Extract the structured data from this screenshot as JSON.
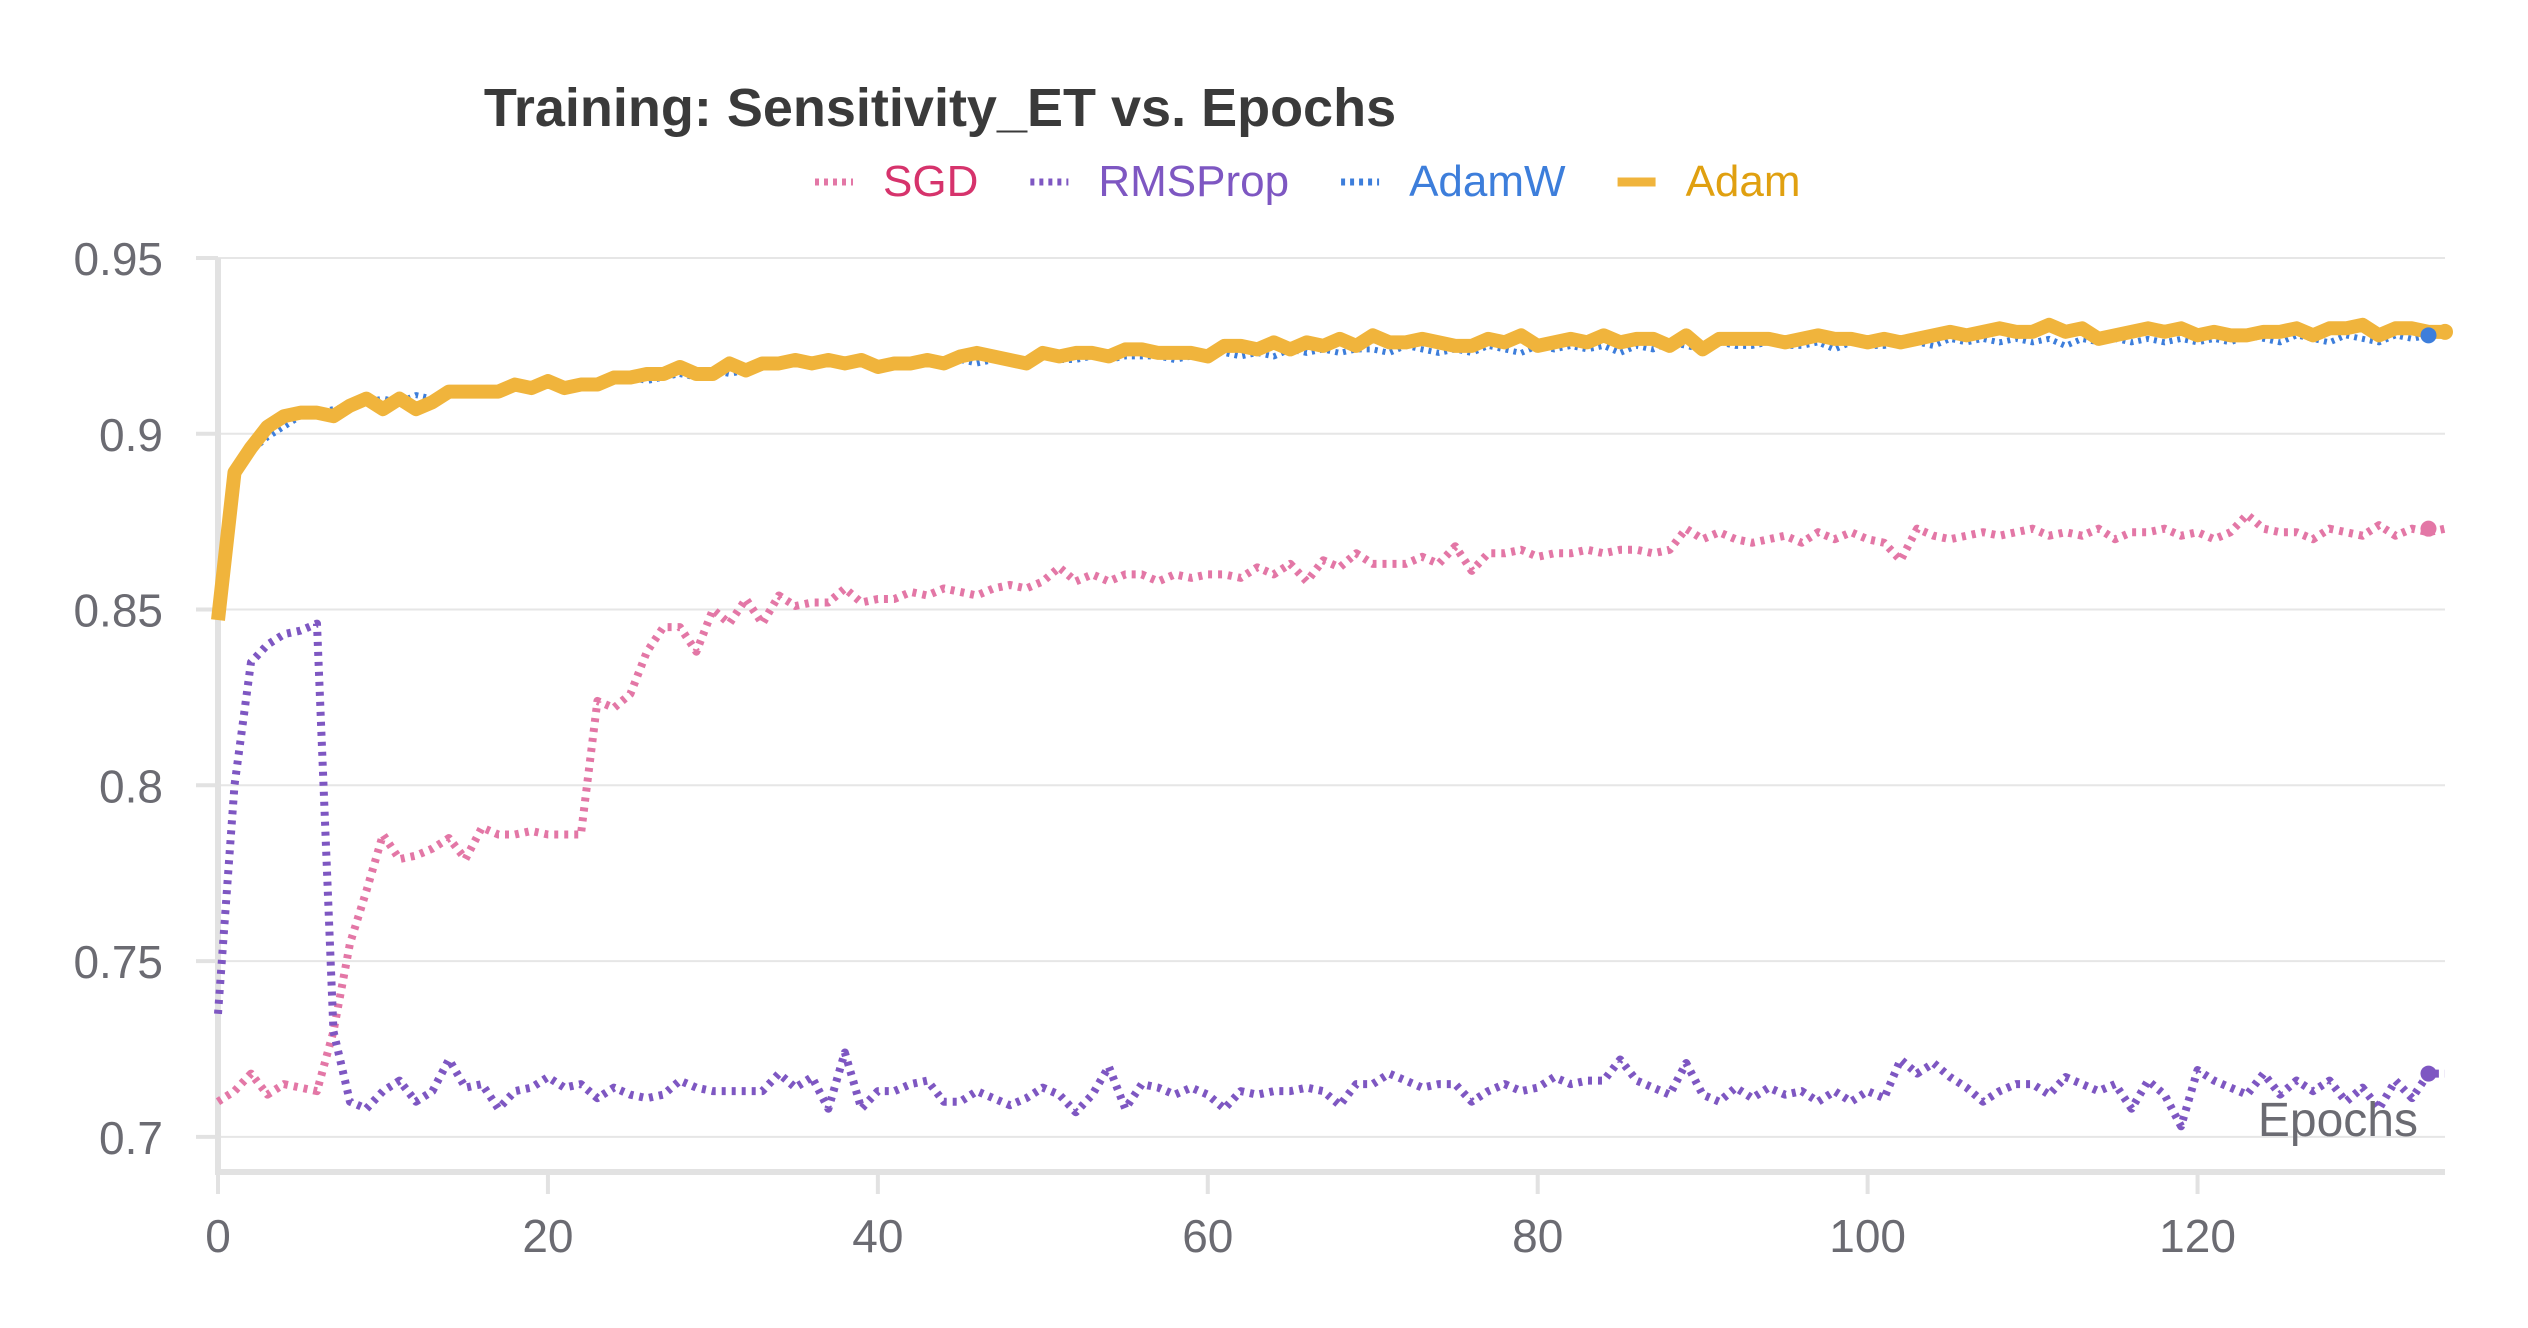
{
  "chart_data": {
    "type": "line",
    "title": "Training: Sensitivity_ET vs. Epochs",
    "xlabel": "Epochs",
    "ylabel": "",
    "xlim": [
      0,
      135
    ],
    "ylim": [
      0.69,
      0.95
    ],
    "x_ticks": [
      0,
      20,
      40,
      60,
      80,
      100,
      120
    ],
    "x_tick_labels": [
      "0",
      "20",
      "40",
      "60",
      "80",
      "100",
      "120"
    ],
    "y_ticks": [
      0.7,
      0.75,
      0.8,
      0.85,
      0.9,
      0.95
    ],
    "y_tick_labels": [
      "0.7",
      "0.75",
      "0.8",
      "0.85",
      "0.9",
      "0.95"
    ],
    "grid": true,
    "legend_position": "top-center",
    "x": [
      0,
      1,
      2,
      3,
      4,
      5,
      6,
      7,
      8,
      9,
      10,
      11,
      12,
      13,
      14,
      15,
      16,
      17,
      18,
      19,
      20,
      21,
      22,
      23,
      24,
      25,
      26,
      27,
      28,
      29,
      30,
      31,
      32,
      33,
      34,
      35,
      36,
      37,
      38,
      39,
      40,
      41,
      42,
      43,
      44,
      45,
      46,
      47,
      48,
      49,
      50,
      51,
      52,
      53,
      54,
      55,
      56,
      57,
      58,
      59,
      60,
      61,
      62,
      63,
      64,
      65,
      66,
      67,
      68,
      69,
      70,
      71,
      72,
      73,
      74,
      75,
      76,
      77,
      78,
      79,
      80,
      81,
      82,
      83,
      84,
      85,
      86,
      87,
      88,
      89,
      90,
      91,
      92,
      93,
      94,
      95,
      96,
      97,
      98,
      99,
      100,
      101,
      102,
      103,
      104,
      105,
      106,
      107,
      108,
      109,
      110,
      111,
      112,
      113,
      114,
      115,
      116,
      117,
      118,
      119,
      120,
      121,
      122,
      123,
      124,
      125,
      126,
      127,
      128,
      129,
      130,
      131,
      132,
      133,
      134,
      135
    ],
    "series": [
      {
        "name": "SGD",
        "color": "#e377a6",
        "label_color": "#d6336c",
        "dash": "dotted",
        "values": [
          0.71,
          0.713,
          0.718,
          0.712,
          0.715,
          0.714,
          0.713,
          0.73,
          0.755,
          0.77,
          0.786,
          0.779,
          0.78,
          0.782,
          0.785,
          0.779,
          0.788,
          0.786,
          0.786,
          0.787,
          0.786,
          0.786,
          0.786,
          0.824,
          0.822,
          0.826,
          0.838,
          0.845,
          0.845,
          0.838,
          0.85,
          0.846,
          0.853,
          0.846,
          0.854,
          0.851,
          0.852,
          0.852,
          0.856,
          0.852,
          0.853,
          0.853,
          0.855,
          0.854,
          0.856,
          0.855,
          0.854,
          0.856,
          0.857,
          0.856,
          0.858,
          0.862,
          0.858,
          0.86,
          0.858,
          0.86,
          0.86,
          0.858,
          0.86,
          0.859,
          0.86,
          0.86,
          0.859,
          0.862,
          0.86,
          0.863,
          0.858,
          0.864,
          0.862,
          0.866,
          0.863,
          0.863,
          0.863,
          0.865,
          0.863,
          0.868,
          0.861,
          0.866,
          0.866,
          0.867,
          0.865,
          0.866,
          0.866,
          0.867,
          0.866,
          0.867,
          0.867,
          0.866,
          0.867,
          0.873,
          0.87,
          0.872,
          0.87,
          0.869,
          0.87,
          0.871,
          0.869,
          0.872,
          0.87,
          0.872,
          0.87,
          0.869,
          0.864,
          0.873,
          0.871,
          0.87,
          0.871,
          0.872,
          0.871,
          0.872,
          0.873,
          0.871,
          0.872,
          0.871,
          0.873,
          0.87,
          0.872,
          0.872,
          0.873,
          0.871,
          0.872,
          0.87,
          0.872,
          0.877,
          0.873,
          0.872,
          0.872,
          0.87,
          0.873,
          0.872,
          0.871,
          0.874,
          0.871,
          0.873,
          0.872,
          0.873
        ],
        "last_point": [
          134,
          0.873
        ]
      },
      {
        "name": "RMSProp",
        "color": "#7e57c2",
        "label_color": "#7e57c2",
        "dash": "dotted",
        "values": [
          0.735,
          0.8,
          0.835,
          0.84,
          0.843,
          0.844,
          0.846,
          0.73,
          0.71,
          0.708,
          0.713,
          0.716,
          0.71,
          0.713,
          0.722,
          0.714,
          0.715,
          0.708,
          0.713,
          0.714,
          0.717,
          0.714,
          0.715,
          0.711,
          0.714,
          0.712,
          0.711,
          0.712,
          0.716,
          0.714,
          0.713,
          0.713,
          0.713,
          0.713,
          0.718,
          0.714,
          0.717,
          0.708,
          0.724,
          0.708,
          0.713,
          0.713,
          0.715,
          0.716,
          0.71,
          0.71,
          0.713,
          0.711,
          0.709,
          0.711,
          0.714,
          0.712,
          0.707,
          0.712,
          0.72,
          0.708,
          0.715,
          0.714,
          0.712,
          0.714,
          0.712,
          0.708,
          0.713,
          0.712,
          0.713,
          0.713,
          0.714,
          0.713,
          0.709,
          0.715,
          0.715,
          0.718,
          0.716,
          0.714,
          0.715,
          0.715,
          0.71,
          0.713,
          0.715,
          0.713,
          0.714,
          0.717,
          0.715,
          0.716,
          0.716,
          0.722,
          0.716,
          0.714,
          0.712,
          0.721,
          0.712,
          0.71,
          0.714,
          0.711,
          0.714,
          0.712,
          0.713,
          0.71,
          0.713,
          0.71,
          0.713,
          0.711,
          0.722,
          0.718,
          0.721,
          0.717,
          0.714,
          0.71,
          0.713,
          0.715,
          0.715,
          0.712,
          0.717,
          0.715,
          0.713,
          0.715,
          0.708,
          0.716,
          0.712,
          0.703,
          0.719,
          0.716,
          0.714,
          0.712,
          0.718,
          0.712,
          0.716,
          0.713,
          0.716,
          0.71,
          0.714,
          0.708,
          0.716,
          0.711,
          0.718,
          0.718
        ],
        "last_point": [
          134,
          0.718
        ]
      },
      {
        "name": "AdamW",
        "color": "#3d7edb",
        "label_color": "#3d7edb",
        "dash": "dotted",
        "values": [
          0.852,
          0.887,
          0.895,
          0.899,
          0.902,
          0.905,
          0.906,
          0.907,
          0.908,
          0.909,
          0.91,
          0.909,
          0.911,
          0.91,
          0.912,
          0.912,
          0.911,
          0.912,
          0.913,
          0.912,
          0.914,
          0.913,
          0.914,
          0.915,
          0.915,
          0.916,
          0.915,
          0.916,
          0.917,
          0.916,
          0.918,
          0.917,
          0.918,
          0.919,
          0.919,
          0.92,
          0.919,
          0.92,
          0.919,
          0.92,
          0.919,
          0.92,
          0.92,
          0.921,
          0.92,
          0.921,
          0.92,
          0.921,
          0.922,
          0.92,
          0.922,
          0.921,
          0.921,
          0.922,
          0.921,
          0.922,
          0.922,
          0.922,
          0.921,
          0.922,
          0.923,
          0.923,
          0.922,
          0.923,
          0.922,
          0.924,
          0.923,
          0.924,
          0.923,
          0.924,
          0.924,
          0.923,
          0.925,
          0.924,
          0.923,
          0.924,
          0.923,
          0.925,
          0.924,
          0.923,
          0.925,
          0.924,
          0.925,
          0.924,
          0.925,
          0.923,
          0.925,
          0.924,
          0.926,
          0.925,
          0.924,
          0.926,
          0.925,
          0.925,
          0.926,
          0.925,
          0.925,
          0.926,
          0.924,
          0.926,
          0.925,
          0.925,
          0.926,
          0.926,
          0.925,
          0.927,
          0.926,
          0.927,
          0.926,
          0.927,
          0.926,
          0.927,
          0.925,
          0.927,
          0.926,
          0.927,
          0.926,
          0.927,
          0.926,
          0.927,
          0.926,
          0.927,
          0.926,
          0.928,
          0.927,
          0.926,
          0.928,
          0.927,
          0.926,
          0.928,
          0.927,
          0.926,
          0.928,
          0.927,
          0.928,
          0.928
        ],
        "last_point": [
          134,
          0.928
        ]
      },
      {
        "name": "Adam",
        "color": "#f0b43c",
        "label_color": "#e0a010",
        "dash": "solid",
        "values": [
          0.847,
          0.889,
          0.896,
          0.902,
          0.905,
          0.906,
          0.906,
          0.905,
          0.908,
          0.91,
          0.907,
          0.91,
          0.907,
          0.909,
          0.912,
          0.912,
          0.912,
          0.912,
          0.914,
          0.913,
          0.915,
          0.913,
          0.914,
          0.914,
          0.916,
          0.916,
          0.917,
          0.917,
          0.919,
          0.917,
          0.917,
          0.92,
          0.918,
          0.92,
          0.92,
          0.921,
          0.92,
          0.921,
          0.92,
          0.921,
          0.919,
          0.92,
          0.92,
          0.921,
          0.92,
          0.922,
          0.923,
          0.922,
          0.921,
          0.92,
          0.923,
          0.922,
          0.923,
          0.923,
          0.922,
          0.924,
          0.924,
          0.923,
          0.923,
          0.923,
          0.922,
          0.925,
          0.925,
          0.924,
          0.926,
          0.924,
          0.926,
          0.925,
          0.927,
          0.925,
          0.928,
          0.926,
          0.926,
          0.927,
          0.926,
          0.925,
          0.925,
          0.927,
          0.926,
          0.928,
          0.925,
          0.926,
          0.927,
          0.926,
          0.928,
          0.926,
          0.927,
          0.927,
          0.925,
          0.928,
          0.924,
          0.927,
          0.927,
          0.927,
          0.927,
          0.926,
          0.927,
          0.928,
          0.927,
          0.927,
          0.926,
          0.927,
          0.926,
          0.927,
          0.928,
          0.929,
          0.928,
          0.929,
          0.93,
          0.929,
          0.929,
          0.931,
          0.929,
          0.93,
          0.927,
          0.928,
          0.929,
          0.93,
          0.929,
          0.93,
          0.928,
          0.929,
          0.928,
          0.928,
          0.929,
          0.929,
          0.93,
          0.928,
          0.93,
          0.93,
          0.931,
          0.928,
          0.93,
          0.93,
          0.929,
          0.929
        ],
        "last_point": [
          135,
          0.929
        ]
      }
    ]
  }
}
